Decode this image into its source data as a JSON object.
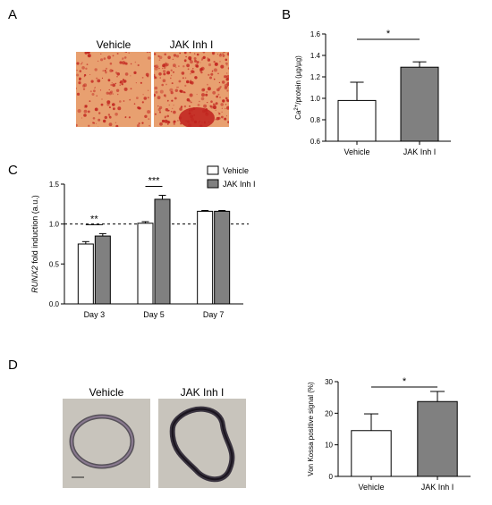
{
  "panels": {
    "A": {
      "letter": "A",
      "image_labels": [
        "Vehicle",
        "JAK Inh I"
      ],
      "stain_colors": {
        "background": "#e8a070",
        "dots": "#c0201c"
      }
    },
    "B": {
      "letter": "B",
      "ylabel_html": "Ca<sup>2+</sup>/protein (µg/µg)"
    },
    "C": {
      "letter": "C",
      "ylabel_html": "<tspan font-style=\"italic\">RUNX2</tspan> fold induction (a.u.)"
    },
    "D": {
      "letter": "D",
      "image_labels": [
        "Vehicle",
        "JAK Inh I"
      ],
      "section_colors": {
        "background": "#c8c4bc",
        "tissue": "#3a3440"
      }
    }
  },
  "chart_data": [
    {
      "id": "B",
      "type": "bar",
      "categories": [
        "Vehicle",
        "JAK Inh I"
      ],
      "values": [
        0.98,
        1.29
      ],
      "errors": [
        0.17,
        0.05
      ],
      "colors": [
        "#ffffff",
        "#808080"
      ],
      "ylabel": "Ca2+/protein (µg/µg)",
      "ylim": [
        0.6,
        1.6
      ],
      "yticks": [
        "0.6",
        "0.8",
        "1.0",
        "1.2",
        "1.4",
        "1.6"
      ],
      "significance": [
        {
          "from": 0,
          "to": 1,
          "label": "*"
        }
      ]
    },
    {
      "id": "C",
      "type": "bar",
      "categories": [
        "Day 3",
        "Day 5",
        "Day 7"
      ],
      "series": [
        {
          "name": "Vehicle",
          "values": [
            0.75,
            1.01,
            1.16
          ],
          "errors": [
            0.03,
            0.02,
            0.01
          ],
          "color": "#ffffff"
        },
        {
          "name": "JAK Inh I",
          "values": [
            0.85,
            1.31,
            1.16
          ],
          "errors": [
            0.03,
            0.05,
            0.01
          ],
          "color": "#808080"
        }
      ],
      "ylabel": "RUNX2 fold induction (a.u.)",
      "ylim": [
        0.0,
        1.5
      ],
      "yticks": [
        "0.0",
        "0.5",
        "1.0",
        "1.5"
      ],
      "reference_line": 1.0,
      "significance": [
        {
          "group": 0,
          "label": "**"
        },
        {
          "group": 1,
          "label": "***"
        }
      ],
      "legend": "top-right"
    },
    {
      "id": "D",
      "type": "bar",
      "categories": [
        "Vehicle",
        "JAK Inh I"
      ],
      "values": [
        14.5,
        23.7
      ],
      "errors": [
        5.3,
        3.2
      ],
      "colors": [
        "#ffffff",
        "#808080"
      ],
      "ylabel": "Von Kossa positive signal (%)",
      "ylim": [
        0,
        30
      ],
      "yticks": [
        "0",
        "10",
        "20",
        "30"
      ],
      "significance": [
        {
          "from": 0,
          "to": 1,
          "label": "*"
        }
      ]
    }
  ]
}
